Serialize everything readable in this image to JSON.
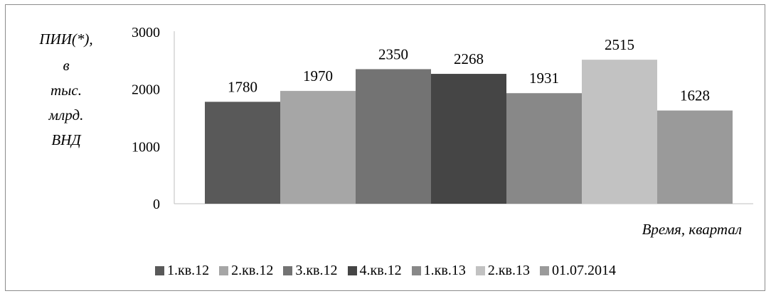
{
  "chart_data": {
    "type": "bar",
    "categories": [
      "1.кв.12",
      "2.кв.12",
      "3.кв.12",
      "4.кв.12",
      "1.кв.13",
      "2.кв.13",
      "01.07.2014"
    ],
    "values": [
      1780,
      1970,
      2350,
      2268,
      1931,
      2515,
      1628
    ],
    "colors": [
      "#595959",
      "#a6a6a6",
      "#737373",
      "#454545",
      "#888888",
      "#c2c2c2",
      "#9a9a9a"
    ],
    "ylabel_lines": [
      "ПИИ(*),",
      "в",
      "тыс.",
      "млрд.",
      "ВНД"
    ],
    "xlabel": "Время, квартал",
    "y_ticks": [
      "0",
      "1000",
      "2000",
      "3000"
    ],
    "ylim": [
      0,
      3000
    ],
    "grid": false,
    "legend_position": "bottom"
  }
}
